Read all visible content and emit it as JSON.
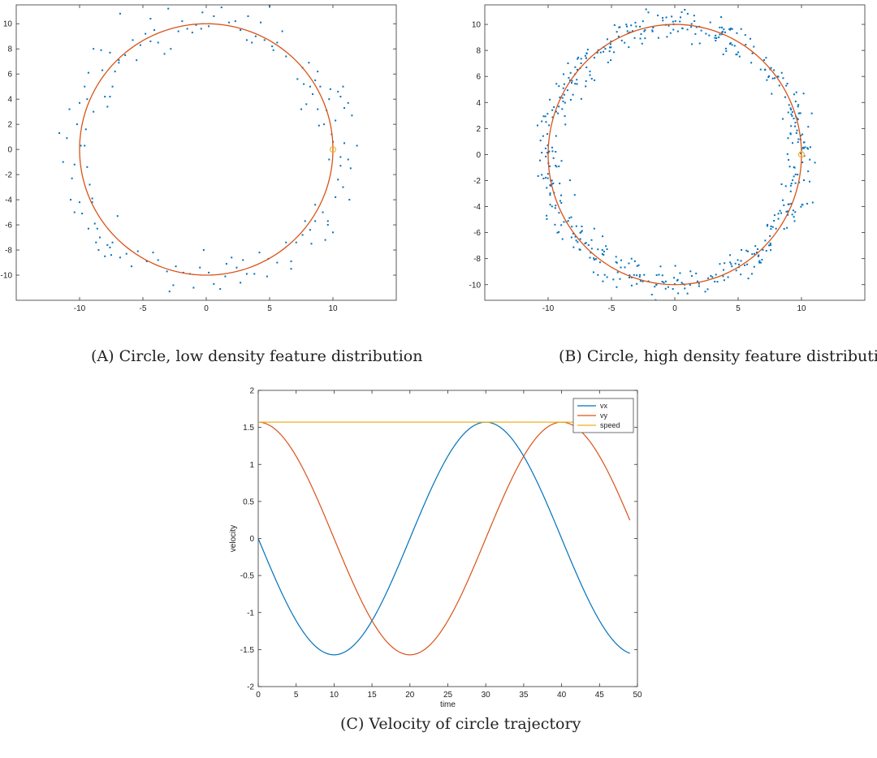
{
  "chart_data": [
    {
      "type": "scatter",
      "caption_label": "(A)",
      "caption": "Circle, low density feature distribution",
      "xlim": [
        -15,
        15
      ],
      "ylim": [
        -12,
        11.5
      ],
      "xticks": [
        -10,
        -5,
        0,
        5,
        10
      ],
      "yticks": [
        -10,
        -8,
        -6,
        -4,
        -2,
        0,
        2,
        4,
        6,
        8,
        10
      ],
      "grid": false,
      "series": [
        {
          "kind": "scatter",
          "color": "#0072BD",
          "points": [
            [
              -11.6,
              1.3
            ],
            [
              -11.3,
              -1.0
            ],
            [
              -11.0,
              0.9
            ],
            [
              -10.8,
              3.2
            ],
            [
              -10.6,
              -2.3
            ],
            [
              -10.7,
              -4.0
            ],
            [
              -10.4,
              -5.0
            ],
            [
              -10.0,
              -4.2
            ],
            [
              -9.9,
              0.3
            ],
            [
              -9.6,
              0.3
            ],
            [
              -9.8,
              -5.1
            ],
            [
              -9.4,
              -1.4
            ],
            [
              -9.2,
              -2.8
            ],
            [
              -9.5,
              1.6
            ],
            [
              -9.4,
              4.0
            ],
            [
              -9.6,
              5.0
            ],
            [
              -9.0,
              -3.9
            ],
            [
              -8.9,
              3.0
            ],
            [
              -8.8,
              -5.9
            ],
            [
              -8.6,
              -6.3
            ],
            [
              -8.4,
              -7.0
            ],
            [
              -8.2,
              6.3
            ],
            [
              -8.5,
              -8.0
            ],
            [
              -8.0,
              -8.5
            ],
            [
              -7.8,
              -7.6
            ],
            [
              -7.6,
              -7.8
            ],
            [
              -7.4,
              -7.4
            ],
            [
              -8.9,
              8.0
            ],
            [
              -8.3,
              7.9
            ],
            [
              -7.8,
              3.4
            ],
            [
              -8.0,
              4.2
            ],
            [
              -7.6,
              4.2
            ],
            [
              -7.4,
              5.0
            ],
            [
              -7.2,
              6.2
            ],
            [
              -6.9,
              6.9
            ],
            [
              -7.0,
              -5.3
            ],
            [
              -6.3,
              -8.3
            ],
            [
              -5.9,
              -9.3
            ],
            [
              -5.4,
              -8.1
            ],
            [
              -4.7,
              -8.9
            ],
            [
              -4.2,
              -8.2
            ],
            [
              -3.8,
              -8.8
            ],
            [
              -3.1,
              -9.7
            ],
            [
              -2.9,
              -11.3
            ],
            [
              -2.6,
              -10.8
            ],
            [
              -1.8,
              -9.8
            ],
            [
              -1.3,
              -9.9
            ],
            [
              -0.5,
              -9.4
            ],
            [
              -0.2,
              -8.0
            ],
            [
              0.2,
              -9.8
            ],
            [
              0.6,
              -10.7
            ],
            [
              1.1,
              -11.1
            ],
            [
              1.6,
              -9.1
            ],
            [
              2.0,
              -8.6
            ],
            [
              2.4,
              -9.4
            ],
            [
              2.9,
              -8.8
            ],
            [
              3.2,
              -9.9
            ],
            [
              3.8,
              -9.9
            ],
            [
              4.2,
              -8.2
            ],
            [
              4.9,
              -8.7
            ],
            [
              5.6,
              -9.0
            ],
            [
              6.3,
              -7.4
            ],
            [
              6.7,
              -8.9
            ],
            [
              7.1,
              -7.4
            ],
            [
              7.6,
              -6.8
            ],
            [
              8.2,
              -6.4
            ],
            [
              8.6,
              -4.4
            ],
            [
              8.6,
              -5.7
            ],
            [
              9.2,
              -5.0
            ],
            [
              9.6,
              -6.0
            ],
            [
              10.0,
              -6.6
            ],
            [
              9.4,
              -7.2
            ],
            [
              9.6,
              -5.7
            ],
            [
              10.4,
              -2.4
            ],
            [
              10.6,
              -0.6
            ],
            [
              10.9,
              0.5
            ],
            [
              11.2,
              -0.8
            ],
            [
              11.4,
              -1.5
            ],
            [
              11.5,
              2.7
            ],
            [
              11.2,
              3.7
            ],
            [
              10.6,
              4.2
            ],
            [
              10.8,
              5.0
            ],
            [
              10.4,
              4.6
            ],
            [
              10.2,
              2.3
            ],
            [
              9.9,
              1.2
            ],
            [
              10.0,
              0.6
            ],
            [
              9.3,
              2.0
            ],
            [
              9.7,
              -0.8
            ],
            [
              8.9,
              1.9
            ],
            [
              8.8,
              3.2
            ],
            [
              8.4,
              4.4
            ],
            [
              8.2,
              5.0
            ],
            [
              7.9,
              3.6
            ],
            [
              7.5,
              3.2
            ],
            [
              7.7,
              5.2
            ],
            [
              7.2,
              5.6
            ],
            [
              7.6,
              6.5
            ],
            [
              8.1,
              6.9
            ],
            [
              8.6,
              5.5
            ],
            [
              9.0,
              5.0
            ],
            [
              9.5,
              3.1
            ],
            [
              9.7,
              4.0
            ],
            [
              6.3,
              7.4
            ],
            [
              5.6,
              8.5
            ],
            [
              5.2,
              8.2
            ],
            [
              4.6,
              8.7
            ],
            [
              3.9,
              9.0
            ],
            [
              3.6,
              8.5
            ],
            [
              3.2,
              8.7
            ],
            [
              2.7,
              9.5
            ],
            [
              2.3,
              10.2
            ],
            [
              1.8,
              10.1
            ],
            [
              1.2,
              11.3
            ],
            [
              0.6,
              10.6
            ],
            [
              0.2,
              9.8
            ],
            [
              -0.4,
              9.6
            ],
            [
              -0.8,
              9.9
            ],
            [
              -1.1,
              9.3
            ],
            [
              -1.5,
              9.6
            ],
            [
              -2.2,
              9.4
            ],
            [
              -2.8,
              8.0
            ],
            [
              -3.3,
              7.6
            ],
            [
              -3.8,
              8.5
            ],
            [
              -4.4,
              8.6
            ],
            [
              -4.8,
              9.2
            ],
            [
              -5.2,
              8.3
            ],
            [
              -5.8,
              8.7
            ],
            [
              -6.4,
              7.5
            ],
            [
              -6.9,
              7.1
            ],
            [
              5.0,
              11.4
            ],
            [
              4.3,
              10.1
            ],
            [
              -3.0,
              11.2
            ],
            [
              -4.4,
              10.4
            ],
            [
              -6.8,
              10.8
            ],
            [
              10.6,
              -1.3
            ],
            [
              10.8,
              -3.0
            ],
            [
              -9.0,
              -4.2
            ],
            [
              -10.4,
              -1.2
            ],
            [
              -7.5,
              -8.4
            ],
            [
              -1.0,
              -11.0
            ],
            [
              8.3,
              -7.5
            ],
            [
              11.3,
              -4.0
            ],
            [
              6.0,
              9.4
            ],
            [
              5.3,
              7.9
            ],
            [
              -5.5,
              7.1
            ],
            [
              -10.2,
              2.0
            ],
            [
              2.7,
              -10.6
            ],
            [
              4.8,
              -10.1
            ],
            [
              -8.7,
              -7.4
            ],
            [
              9.8,
              4.8
            ],
            [
              10.9,
              3.3
            ],
            [
              7.8,
              -5.7
            ],
            [
              8.8,
              6.2
            ],
            [
              -2.4,
              -9.3
            ],
            [
              1.5,
              -10.1
            ],
            [
              3.3,
              10.6
            ],
            [
              -0.3,
              10.9
            ],
            [
              -1.9,
              10.2
            ],
            [
              -4.1,
              9.5
            ],
            [
              -7.6,
              7.7
            ],
            [
              -9.3,
              6.1
            ],
            [
              -10.0,
              3.7
            ],
            [
              -9.3,
              -6.3
            ],
            [
              -6.8,
              -8.6
            ],
            [
              6.7,
              -9.5
            ],
            [
              10.2,
              -3.8
            ],
            [
              11.9,
              0.3
            ]
          ]
        },
        {
          "kind": "line",
          "name": "circle",
          "color": "#D95319",
          "radius": 10
        },
        {
          "kind": "marker",
          "color": "#EDB120",
          "points": [
            [
              10,
              0
            ]
          ]
        }
      ]
    },
    {
      "type": "scatter",
      "caption_label": "(B)",
      "caption": "Circle, high density feature distribution",
      "xlim": [
        -15,
        15
      ],
      "ylim": [
        -11.2,
        11.5
      ],
      "xticks": [
        -10,
        -5,
        0,
        5,
        10
      ],
      "yticks": [
        -10,
        -8,
        -6,
        -4,
        -2,
        0,
        2,
        4,
        6,
        8,
        10
      ],
      "grid": false,
      "series": [
        {
          "kind": "scatter",
          "color": "#0072BD",
          "seed": 7,
          "count": 520,
          "radius_mean": 10,
          "radius_spread": 1.1,
          "note_ref": ""
        },
        {
          "kind": "line",
          "name": "circle",
          "color": "#D95319",
          "radius": 10
        },
        {
          "kind": "marker",
          "color": "#EDB120",
          "points": [
            [
              10,
              0
            ]
          ]
        }
      ]
    },
    {
      "type": "line",
      "caption_label": "(C)",
      "caption": "Velocity of circle trajectory",
      "xlabel": "time",
      "ylabel": "velocity",
      "xlim": [
        0,
        50
      ],
      "ylim": [
        -2,
        2
      ],
      "xticks": [
        0,
        5,
        10,
        15,
        20,
        25,
        30,
        35,
        40,
        45,
        50
      ],
      "yticks": [
        -2,
        -1.5,
        -1,
        -0.5,
        0,
        0.5,
        1,
        1.5,
        2
      ],
      "ytick_labels": [
        "-2",
        "-1.5",
        "-1",
        "-0.5",
        "0",
        "0.5",
        "1",
        "1.5",
        "2"
      ],
      "grid": false,
      "legend_position": "top-right",
      "series": [
        {
          "name": "vx",
          "color": "#0072BD",
          "x": [
            0,
            1,
            2,
            3,
            4,
            5,
            6,
            7,
            8,
            9,
            10,
            11,
            12,
            13,
            14,
            15,
            16,
            17,
            18,
            19,
            20,
            21,
            22,
            23,
            24,
            25,
            26,
            27,
            28,
            29,
            30,
            31,
            32,
            33,
            34,
            35,
            36,
            37,
            38,
            39,
            40,
            41,
            42,
            43,
            44,
            45,
            46,
            47,
            48,
            49
          ],
          "y": [
            0,
            -0.245,
            -0.485,
            -0.713,
            -0.923,
            -1.111,
            -1.271,
            -1.399,
            -1.494,
            -1.551,
            -1.571,
            -1.551,
            -1.494,
            -1.399,
            -1.271,
            -1.111,
            -0.923,
            -0.713,
            -0.485,
            -0.245,
            0,
            0.245,
            0.485,
            0.713,
            0.923,
            1.111,
            1.271,
            1.399,
            1.494,
            1.551,
            1.571,
            1.551,
            1.494,
            1.399,
            1.271,
            1.111,
            0.923,
            0.713,
            0.485,
            0.245,
            0,
            -0.245,
            -0.485,
            -0.713,
            -0.923,
            -1.111,
            -1.271,
            -1.399,
            -1.494,
            -1.551
          ]
        },
        {
          "name": "vy",
          "color": "#D95319",
          "x": [
            0,
            1,
            2,
            3,
            4,
            5,
            6,
            7,
            8,
            9,
            10,
            11,
            12,
            13,
            14,
            15,
            16,
            17,
            18,
            19,
            20,
            21,
            22,
            23,
            24,
            25,
            26,
            27,
            28,
            29,
            30,
            31,
            32,
            33,
            34,
            35,
            36,
            37,
            38,
            39,
            40,
            41,
            42,
            43,
            44,
            45,
            46,
            47,
            48,
            49
          ],
          "y": [
            1.571,
            1.551,
            1.494,
            1.399,
            1.271,
            1.111,
            0.923,
            0.713,
            0.485,
            0.245,
            0,
            -0.245,
            -0.485,
            -0.713,
            -0.923,
            -1.111,
            -1.271,
            -1.399,
            -1.494,
            -1.551,
            -1.571,
            -1.551,
            -1.494,
            -1.399,
            -1.271,
            -1.111,
            -0.923,
            -0.713,
            -0.485,
            -0.245,
            0,
            0.245,
            0.485,
            0.713,
            0.923,
            1.111,
            1.271,
            1.399,
            1.494,
            1.551,
            1.571,
            1.551,
            1.494,
            1.399,
            1.271,
            1.111,
            0.923,
            0.713,
            0.485,
            0.245
          ]
        },
        {
          "name": "speed",
          "color": "#EDB120",
          "x": [
            0,
            49
          ],
          "y": [
            1.571,
            1.571
          ]
        }
      ]
    }
  ]
}
